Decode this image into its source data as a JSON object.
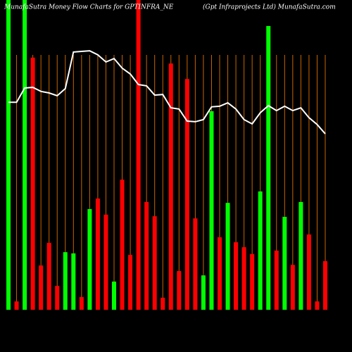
{
  "chart_data": {
    "type": "bar",
    "title": "MunafaSutra  Money Flow  Charts for GPTINFRA_NE",
    "subtitle": "(Gpt Infraprojects Ltd) MunafaSutra.com",
    "ylim": [
      0,
      100
    ],
    "series": [
      {
        "name": "Money Flow",
        "type": "bar",
        "colors": [
          "#00ff00",
          "#ff0000",
          "#00ff00",
          "#ff0000",
          "#ff0000",
          "#ff0000",
          "#ff0000",
          "#00ff00",
          "#00ff00",
          "#ff0000",
          "#00ff00",
          "#ff0000",
          "#ff0000",
          "#00ff00",
          "#ff0000",
          "#ff0000",
          "#ff0000",
          "#ff0000",
          "#ff0000",
          "#ff0000",
          "#ff0000",
          "#ff0000",
          "#ff0000",
          "#ff0000",
          "#00ff00",
          "#00ff00",
          "#ff0000",
          "#00ff00",
          "#ff0000",
          "#ff0000",
          "#ff0000",
          "#00ff00",
          "#00ff00",
          "#ff0000",
          "#00ff00",
          "#ff0000",
          "#00ff00",
          "#ff0000",
          "#ff0000",
          "#ff0000"
        ],
        "values": [
          100,
          2.7,
          100,
          81.4,
          14.3,
          21.6,
          7.7,
          18.6,
          18.2,
          4.1,
          32.5,
          35.9,
          30.7,
          9.1,
          42,
          17.7,
          100,
          34.8,
          30.2,
          3.9,
          79.5,
          12.5,
          74.5,
          29.5,
          11.1,
          64.1,
          23.4,
          34.5,
          21.8,
          20.2,
          18,
          38.2,
          91.6,
          19.1,
          30,
          14.5,
          34.8,
          24.3,
          2.7,
          15.7
        ]
      },
      {
        "name": "Price",
        "type": "line",
        "color": "#ffffff",
        "values": [
          67,
          67,
          71.6,
          71.8,
          70.5,
          70,
          69.1,
          71.4,
          83.2,
          83.4,
          83.6,
          82.3,
          80,
          81.1,
          78,
          76.1,
          72.7,
          72.3,
          69.3,
          69.5,
          65.2,
          64.8,
          60.9,
          60.7,
          61.4,
          65.5,
          65.7,
          66.8,
          64.8,
          61.4,
          60,
          63.6,
          65.9,
          64.3,
          65.7,
          64.3,
          65.2,
          62,
          59.8,
          56.8
        ]
      }
    ]
  }
}
